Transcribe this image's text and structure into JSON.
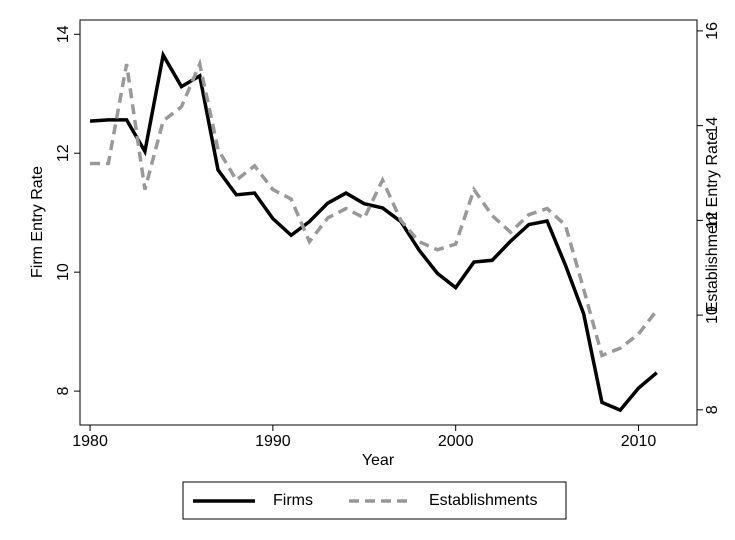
{
  "chart_data": {
    "type": "line",
    "x_label": "Year",
    "y_label": "Firm Entry Rate",
    "y2_label": "Establishment Entry Rate",
    "x": [
      1980,
      1981,
      1982,
      1983,
      1984,
      1985,
      1986,
      1987,
      1988,
      1989,
      1990,
      1991,
      1992,
      1993,
      1994,
      1995,
      1996,
      1997,
      1998,
      1999,
      2000,
      2001,
      2002,
      2003,
      2004,
      2005,
      2006,
      2007,
      2008,
      2009,
      2010,
      2011
    ],
    "series": [
      {
        "name": "Firms",
        "color": "#000000",
        "dash": "solid",
        "axis": "y",
        "values": [
          12.54,
          12.56,
          12.56,
          12.03,
          13.65,
          13.12,
          13.3,
          11.72,
          11.3,
          11.33,
          10.9,
          10.62,
          10.85,
          11.16,
          11.33,
          11.15,
          11.08,
          10.85,
          10.37,
          9.98,
          9.74,
          10.17,
          10.2,
          10.52,
          10.8,
          10.86,
          10.12,
          9.3,
          7.81,
          7.68,
          8.05,
          8.31
        ]
      },
      {
        "name": "Establishments",
        "color": "#999999",
        "dash": "dashed",
        "axis": "y2",
        "values": [
          13.2,
          13.2,
          15.3,
          12.65,
          14.1,
          14.4,
          15.3,
          13.5,
          12.85,
          13.15,
          12.65,
          12.45,
          11.55,
          12.05,
          12.25,
          12.05,
          12.85,
          12.0,
          11.55,
          11.38,
          11.5,
          12.65,
          12.1,
          11.75,
          12.12,
          12.25,
          11.9,
          10.55,
          9.15,
          9.3,
          9.6,
          10.1
        ]
      }
    ],
    "xlim": [
      1979.45,
      2013.2
    ],
    "xticks": [
      1980,
      1990,
      2000,
      2010
    ],
    "ylim": [
      7.43,
      14.24
    ],
    "yticks": [
      8,
      10,
      12,
      14
    ],
    "y2lim": [
      7.68,
      16.23
    ],
    "y2ticks": [
      8,
      10,
      12,
      14,
      16
    ],
    "grid": false,
    "legend": "bottom"
  }
}
